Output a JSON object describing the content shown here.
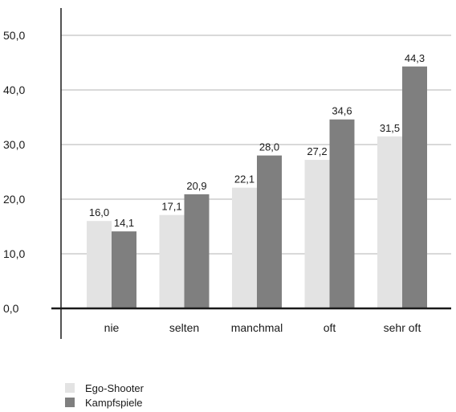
{
  "chart_data": {
    "type": "bar",
    "title": "",
    "xlabel": "",
    "ylabel": "",
    "categories": [
      "nie",
      "selten",
      "manchmal",
      "oft",
      "sehr oft"
    ],
    "series": [
      {
        "name": "Ego-Shooter",
        "color": "#e3e3e3",
        "values": [
          16.0,
          17.1,
          22.1,
          27.2,
          31.5
        ],
        "labels": [
          "16,0",
          "17,1",
          "22,1",
          "27,2",
          "31,5"
        ]
      },
      {
        "name": "Kampfspiele",
        "color": "#7f7f7f",
        "values": [
          14.1,
          20.9,
          28.0,
          34.6,
          44.3
        ],
        "labels": [
          "14,1",
          "20,9",
          "28,0",
          "34,6",
          "44,3"
        ]
      }
    ],
    "ylim": [
      0,
      50
    ],
    "yticks": [
      0,
      10,
      20,
      30,
      40,
      50
    ],
    "ytick_labels": [
      "0,0",
      "10,0",
      "20,0",
      "30,0",
      "40,0",
      "50,0"
    ],
    "grid": true,
    "legend": "bottom-left",
    "colors": {
      "gridline": "#b3b3b3",
      "axis": "#1a1a1a"
    }
  }
}
